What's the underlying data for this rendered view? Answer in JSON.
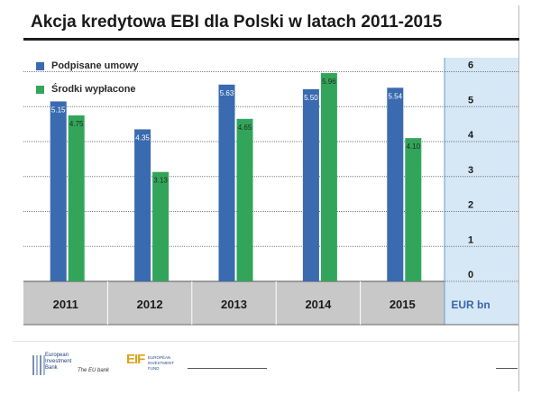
{
  "title": "Akcja kredytowa EBI dla Polski w latach 2011-2015",
  "colors": {
    "series_signed": "#3a6ab0",
    "series_paid": "#33a55a",
    "plot_bg": "#ffffff",
    "axis_band": "#c8c8c8",
    "right_panel": "#d6e7f5",
    "ytick_text": "#1a1a1a",
    "unit_text": "#3c66a8"
  },
  "chart_data": {
    "type": "bar",
    "title": "Akcja kredytowa EBI dla Polski w latach 2011-2015",
    "categories": [
      "2011",
      "2012",
      "2013",
      "2014",
      "2015"
    ],
    "series": [
      {
        "name": "Podpisane umowy",
        "values": [
          5.15,
          4.35,
          5.63,
          5.5,
          5.54
        ],
        "labels": [
          "5.15",
          "4.35",
          "5.63",
          "5.50",
          "5.54"
        ]
      },
      {
        "name": "Środki wypłacone",
        "values": [
          4.75,
          3.13,
          4.65,
          5.96,
          4.1
        ],
        "labels": [
          "4.75",
          "3.13",
          "4.65",
          "5.96",
          "4.10"
        ]
      }
    ],
    "yticks": [
      0,
      1,
      2,
      3,
      4,
      5,
      6
    ],
    "ylim": [
      0,
      6.4
    ],
    "ylabel": "EUR bn",
    "xlabel": "",
    "grid": true,
    "legend": "top-left"
  },
  "footer": {
    "eib_line1": "European",
    "eib_line2": "Investment",
    "eib_line3": "Bank",
    "eib_tagline": "The EU bank",
    "eif_mark": "EIF",
    "eif_line1": "EUROPEAN",
    "eif_line2": "INVESTMENT",
    "eif_line3": "FUND"
  }
}
